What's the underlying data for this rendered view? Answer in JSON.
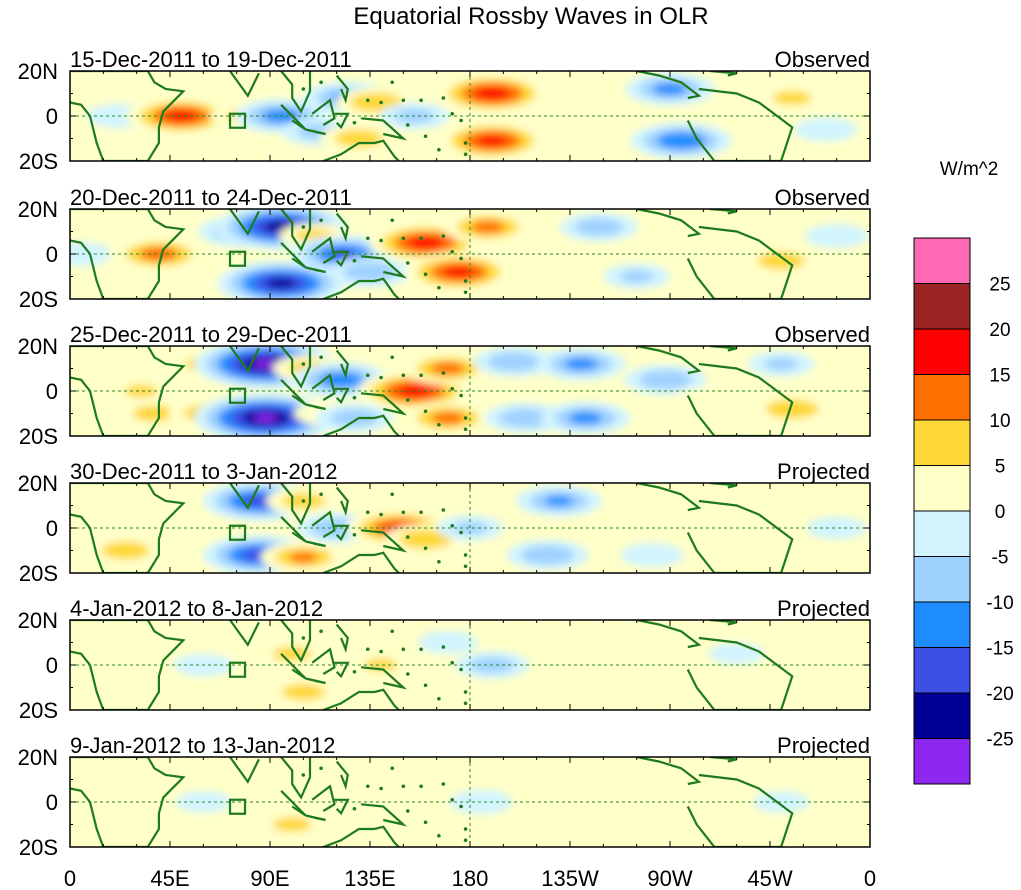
{
  "chart_data": {
    "type": "heatmap",
    "title": "Equatorial Rossby Waves in OLR",
    "variable": "OLR anomaly",
    "units": "W/m^2",
    "x_ticks": [
      "0",
      "45E",
      "90E",
      "135E",
      "180",
      "135W",
      "90W",
      "45W",
      "0"
    ],
    "y_ticks": [
      "20N",
      "0",
      "20S"
    ],
    "lon_range": [
      0,
      360
    ],
    "lat_range": [
      -20,
      20
    ],
    "colorbar": {
      "levels": [
        "25",
        "20",
        "15",
        "10",
        "5",
        "0",
        "-5",
        "-10",
        "-15",
        "-20",
        "-25"
      ],
      "colors": [
        "#ff69b4",
        "#9a2424",
        "#ff0000",
        "#ff7000",
        "#ffd838",
        "#ffffc8",
        "#d2f4ff",
        "#a0d2ff",
        "#1e8cff",
        "#3c50e6",
        "#000096",
        "#8c28f0"
      ]
    },
    "panels": [
      {
        "period": "15-Dec-2011 to 19-Dec-2011",
        "status": "Observed",
        "anomalies": [
          {
            "lon": 0,
            "lat": 0,
            "value": 3
          },
          {
            "lon": 22,
            "lat": 0,
            "value": -5
          },
          {
            "lon": 40,
            "lat": 0,
            "value": 6
          },
          {
            "lon": 50,
            "lat": 0,
            "value": 17
          },
          {
            "lon": 50,
            "lat": -14,
            "value": 4
          },
          {
            "lon": 62,
            "lat": 12,
            "value": 5
          },
          {
            "lon": 78,
            "lat": 0,
            "value": 6
          },
          {
            "lon": 95,
            "lat": 0,
            "value": -13
          },
          {
            "lon": 105,
            "lat": 14,
            "value": 5
          },
          {
            "lon": 112,
            "lat": -7,
            "value": -8
          },
          {
            "lon": 125,
            "lat": 8,
            "value": -12
          },
          {
            "lon": 138,
            "lat": 6,
            "value": 10
          },
          {
            "lon": 130,
            "lat": -10,
            "value": 9
          },
          {
            "lon": 155,
            "lat": 0,
            "value": -7
          },
          {
            "lon": 190,
            "lat": 10,
            "value": 18
          },
          {
            "lon": 190,
            "lat": -11,
            "value": 17
          },
          {
            "lon": 225,
            "lat": 0,
            "value": 3
          },
          {
            "lon": 270,
            "lat": 12,
            "value": -12
          },
          {
            "lon": 275,
            "lat": -11,
            "value": -15
          },
          {
            "lon": 300,
            "lat": 3,
            "value": 4
          },
          {
            "lon": 325,
            "lat": 8,
            "value": 7
          },
          {
            "lon": 340,
            "lat": -6,
            "value": -5
          }
        ]
      },
      {
        "period": "20-Dec-2011 to 24-Dec-2011",
        "status": "Observed",
        "anomalies": [
          {
            "lon": 5,
            "lat": 0,
            "value": -5
          },
          {
            "lon": 33,
            "lat": 0,
            "value": 7
          },
          {
            "lon": 40,
            "lat": 0,
            "value": 13
          },
          {
            "lon": 60,
            "lat": 12,
            "value": 5
          },
          {
            "lon": 78,
            "lat": 10,
            "value": -12
          },
          {
            "lon": 82,
            "lat": -12,
            "value": 12
          },
          {
            "lon": 95,
            "lat": 12,
            "value": -23
          },
          {
            "lon": 95,
            "lat": -13,
            "value": -22
          },
          {
            "lon": 110,
            "lat": 8,
            "value": 7
          },
          {
            "lon": 123,
            "lat": 0,
            "value": -16
          },
          {
            "lon": 135,
            "lat": -8,
            "value": -10
          },
          {
            "lon": 160,
            "lat": 5,
            "value": 18
          },
          {
            "lon": 175,
            "lat": -8,
            "value": 17
          },
          {
            "lon": 188,
            "lat": 12,
            "value": 12
          },
          {
            "lon": 215,
            "lat": 0,
            "value": 4
          },
          {
            "lon": 238,
            "lat": 12,
            "value": -9
          },
          {
            "lon": 255,
            "lat": -10,
            "value": -6
          },
          {
            "lon": 290,
            "lat": 0,
            "value": 4
          },
          {
            "lon": 320,
            "lat": -3,
            "value": 9
          },
          {
            "lon": 345,
            "lat": 8,
            "value": -5
          }
        ]
      },
      {
        "period": "25-Dec-2011 to 29-Dec-2011",
        "status": "Observed",
        "anomalies": [
          {
            "lon": 15,
            "lat": 8,
            "value": 5
          },
          {
            "lon": 32,
            "lat": 0,
            "value": 6
          },
          {
            "lon": 38,
            "lat": -10,
            "value": 8
          },
          {
            "lon": 62,
            "lat": 12,
            "value": 8
          },
          {
            "lon": 62,
            "lat": -10,
            "value": 9
          },
          {
            "lon": 88,
            "lat": 12,
            "value": -26
          },
          {
            "lon": 88,
            "lat": -12,
            "value": -26
          },
          {
            "lon": 108,
            "lat": 10,
            "value": 8
          },
          {
            "lon": 115,
            "lat": -10,
            "value": 5
          },
          {
            "lon": 122,
            "lat": 5,
            "value": -14
          },
          {
            "lon": 128,
            "lat": -12,
            "value": -9
          },
          {
            "lon": 155,
            "lat": 0,
            "value": 18
          },
          {
            "lon": 170,
            "lat": 10,
            "value": 12
          },
          {
            "lon": 170,
            "lat": -12,
            "value": 12
          },
          {
            "lon": 200,
            "lat": 13,
            "value": -10
          },
          {
            "lon": 205,
            "lat": -12,
            "value": -10
          },
          {
            "lon": 230,
            "lat": 12,
            "value": -12
          },
          {
            "lon": 232,
            "lat": -12,
            "value": -12
          },
          {
            "lon": 268,
            "lat": 5,
            "value": -10
          },
          {
            "lon": 285,
            "lat": -4,
            "value": 5
          },
          {
            "lon": 325,
            "lat": -8,
            "value": 10
          },
          {
            "lon": 320,
            "lat": 12,
            "value": -6
          }
        ]
      },
      {
        "period": "30-Dec-2011 to 3-Jan-2012",
        "status": "Projected",
        "anomalies": [
          {
            "lon": 20,
            "lat": 8,
            "value": 5
          },
          {
            "lon": 25,
            "lat": -10,
            "value": 9
          },
          {
            "lon": 45,
            "lat": 0,
            "value": 5
          },
          {
            "lon": 60,
            "lat": 12,
            "value": 4
          },
          {
            "lon": 85,
            "lat": 12,
            "value": -18
          },
          {
            "lon": 85,
            "lat": -12,
            "value": -18
          },
          {
            "lon": 105,
            "lat": 12,
            "value": 8
          },
          {
            "lon": 105,
            "lat": -13,
            "value": 11
          },
          {
            "lon": 120,
            "lat": 0,
            "value": -10
          },
          {
            "lon": 148,
            "lat": 0,
            "value": 16
          },
          {
            "lon": 160,
            "lat": -5,
            "value": 10
          },
          {
            "lon": 180,
            "lat": 0,
            "value": -6
          },
          {
            "lon": 220,
            "lat": 12,
            "value": -11
          },
          {
            "lon": 215,
            "lat": -12,
            "value": -10
          },
          {
            "lon": 258,
            "lat": 10,
            "value": 5
          },
          {
            "lon": 262,
            "lat": -12,
            "value": -5
          },
          {
            "lon": 300,
            "lat": 0,
            "value": 3
          },
          {
            "lon": 345,
            "lat": 0,
            "value": -4
          }
        ]
      },
      {
        "period": "4-Jan-2012 to 8-Jan-2012",
        "status": "Projected",
        "anomalies": [
          {
            "lon": 25,
            "lat": -5,
            "value": 4
          },
          {
            "lon": 60,
            "lat": 0,
            "value": -4
          },
          {
            "lon": 100,
            "lat": 5,
            "value": 7
          },
          {
            "lon": 105,
            "lat": -12,
            "value": 8
          },
          {
            "lon": 140,
            "lat": 0,
            "value": 6
          },
          {
            "lon": 190,
            "lat": 0,
            "value": -8
          },
          {
            "lon": 170,
            "lat": 10,
            "value": -4
          },
          {
            "lon": 250,
            "lat": 0,
            "value": 2
          },
          {
            "lon": 300,
            "lat": 5,
            "value": -3
          }
        ]
      },
      {
        "period": "9-Jan-2012 to 13-Jan-2012",
        "status": "Projected",
        "anomalies": [
          {
            "lon": 25,
            "lat": 0,
            "value": 3
          },
          {
            "lon": 60,
            "lat": 0,
            "value": -3
          },
          {
            "lon": 95,
            "lat": 8,
            "value": 4
          },
          {
            "lon": 100,
            "lat": -10,
            "value": 7
          },
          {
            "lon": 140,
            "lat": -4,
            "value": 4
          },
          {
            "lon": 185,
            "lat": 0,
            "value": -5
          },
          {
            "lon": 260,
            "lat": 0,
            "value": 2
          },
          {
            "lon": 320,
            "lat": 0,
            "value": -3
          }
        ]
      }
    ]
  }
}
